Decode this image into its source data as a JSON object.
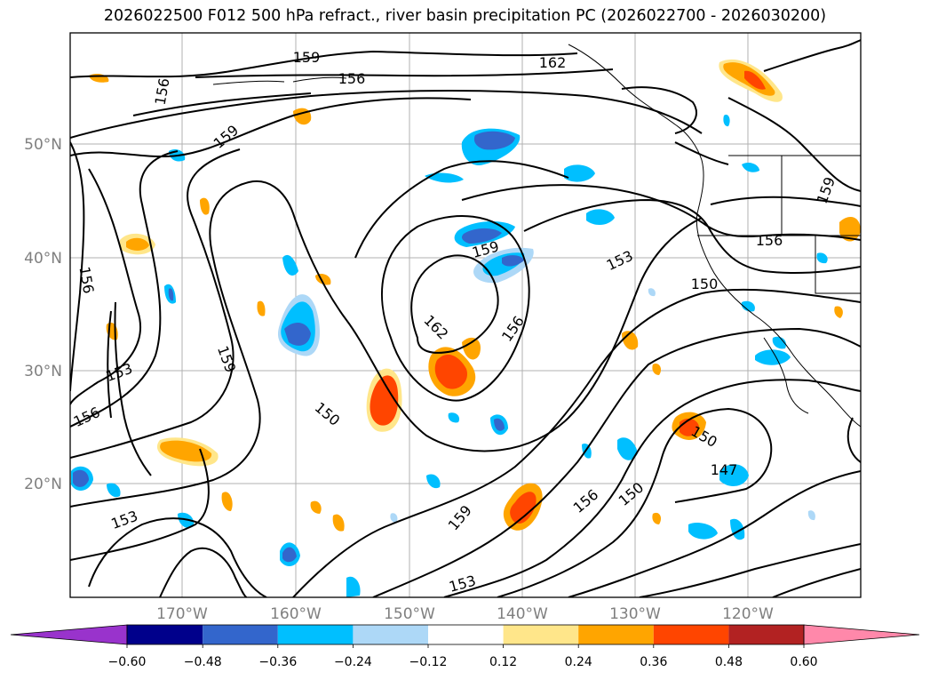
{
  "title": "2026022500 F012 500 hPa refract., river basin precipitation PC (2026022700 - 2026030200)",
  "lat_ticks": [
    "50°N",
    "40°N",
    "30°N",
    "20°N"
  ],
  "lon_ticks": [
    "170°W",
    "160°W",
    "150°W",
    "140°W",
    "130°W",
    "120°W"
  ],
  "contour_labels": [
    "159",
    "162",
    "156",
    "156",
    "159",
    "156",
    "153",
    "156",
    "159",
    "162",
    "156",
    "153",
    "159",
    "156",
    "150",
    "150",
    "153",
    "159",
    "156",
    "150",
    "150",
    "147",
    "153",
    "159"
  ],
  "colorbar": {
    "colors": [
      "#9933cc",
      "#00008b",
      "#3366cc",
      "#00bfff",
      "#add8f7",
      "#ffffff",
      "#ffe68a",
      "#ffa500",
      "#ff4500",
      "#b22222",
      "#ff88aa"
    ],
    "tick_labels": [
      "−0.60",
      "−0.48",
      "−0.36",
      "−0.24",
      "−0.12",
      "0.12",
      "0.24",
      "0.36",
      "0.48",
      "0.60"
    ]
  }
}
